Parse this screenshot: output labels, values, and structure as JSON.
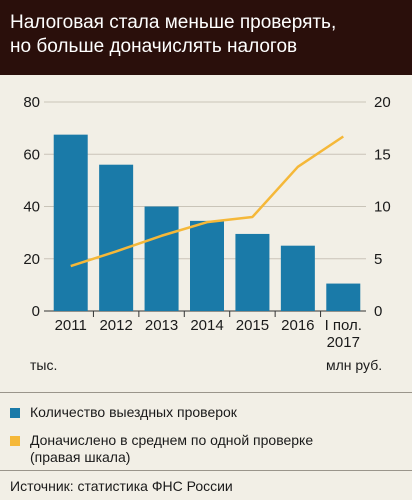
{
  "header": {
    "title_line1": "Налоговая стала меньше проверять,",
    "title_line2": "но больше доначислять налогов"
  },
  "units": {
    "left": "тыс.",
    "right": "млн руб."
  },
  "chart_data": {
    "type": "bar",
    "categories": [
      "2011",
      "2012",
      "2013",
      "2014",
      "2015",
      "2016",
      "I пол. 2017"
    ],
    "category_lines": [
      [
        "2011"
      ],
      [
        "2012"
      ],
      [
        "2013"
      ],
      [
        "2014"
      ],
      [
        "2015"
      ],
      [
        "2016"
      ],
      [
        "I пол.",
        "2017"
      ]
    ],
    "series": [
      {
        "name": "Количество выездных проверок",
        "type": "bar",
        "axis": "left",
        "color": "#1a7aa8",
        "values": [
          67.5,
          56,
          40,
          34.5,
          29.5,
          25,
          10.5
        ]
      },
      {
        "name": "Доначислено в среднем по одной проверке (правая шкала)",
        "type": "line",
        "axis": "right",
        "color": "#f5b839",
        "values": [
          4.3,
          5.7,
          7.2,
          8.5,
          9.0,
          13.8,
          16.7
        ]
      }
    ],
    "y_left": {
      "min": 0,
      "max": 80,
      "ticks": [
        0,
        20,
        40,
        60,
        80
      ]
    },
    "y_right": {
      "min": 0,
      "max": 20,
      "ticks": [
        0,
        5,
        10,
        15,
        20
      ]
    },
    "grid": true
  },
  "legend": [
    {
      "label": "Количество выездных проверок",
      "color": "#1a7aa8"
    },
    {
      "label_line1": "Доначислено в среднем по одной проверке",
      "label_line2": "(правая шкала)",
      "color": "#f5b839"
    }
  ],
  "footer": {
    "source": "Источник: статистика ФНС России"
  }
}
